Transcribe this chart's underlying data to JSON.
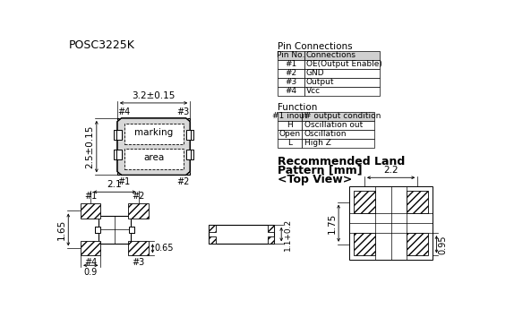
{
  "title": "POSC3225K",
  "bg_color": "#ffffff",
  "pin_connections_title": "Pin Connections",
  "pin_table_headers": [
    "Pin No.",
    "Connections"
  ],
  "pin_table_rows": [
    [
      "#1",
      "OE(Output Enable)"
    ],
    [
      "#2",
      "GND"
    ],
    [
      "#3",
      "Output"
    ],
    [
      "#4",
      "Vcc"
    ]
  ],
  "function_title": "Function",
  "func_table_headers": [
    "#1 inout",
    "# output condition"
  ],
  "func_table_rows": [
    [
      "H",
      "Oscillation out"
    ],
    [
      "Open",
      "Oscillation"
    ],
    [
      "L",
      "High Z"
    ]
  ],
  "recommended_title_line1": "Recommended Land",
  "recommended_title_line2": "Pattern [mm]",
  "recommended_title_line3": "<Top View>",
  "dim_32": "3.2±0.15",
  "dim_25": "2.5±0.15",
  "dim_21": "2.1",
  "dim_165": "1.65",
  "dim_09": "0.9",
  "dim_065": "0.65",
  "dim_11": "1.1+0.2",
  "dim_22": "2.2",
  "dim_175": "1.75",
  "dim_095": "0.95"
}
